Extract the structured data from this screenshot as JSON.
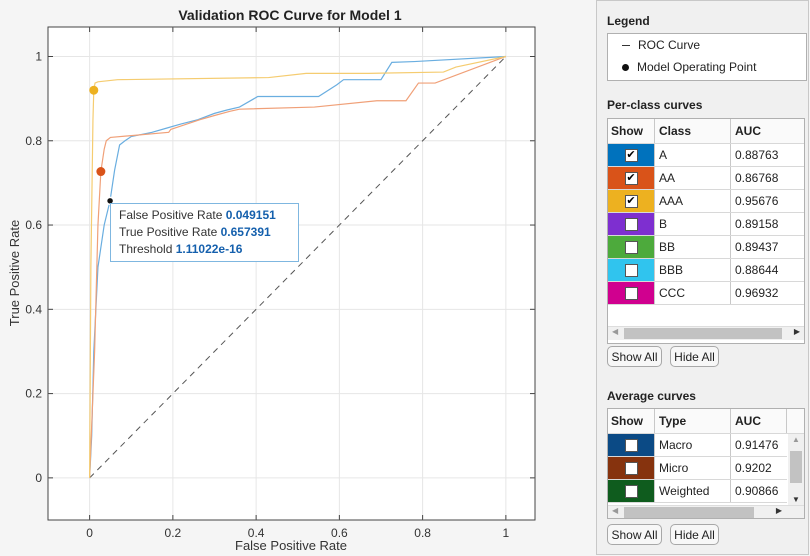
{
  "chart_data": {
    "type": "line",
    "title": "Validation ROC Curve for Model 1",
    "xlabel": "False Positive Rate",
    "ylabel": "True Positive Rate",
    "xlim": [
      -0.1,
      1.07
    ],
    "ylim": [
      -0.1,
      1.07
    ],
    "xticks": [
      "0",
      "0.2",
      "0.4",
      "0.6",
      "0.8",
      "1"
    ],
    "yticks": [
      "0",
      "0.2",
      "0.4",
      "0.6",
      "0.8",
      "1"
    ],
    "grid": true,
    "series": [
      {
        "name": "A",
        "color": "#0072BD",
        "line_color": "#6aaee0",
        "x": [
          0,
          0.005,
          0.01,
          0.02,
          0.035,
          0.049,
          0.06,
          0.072,
          0.085,
          0.1,
          0.15,
          0.185,
          0.22,
          0.26,
          0.3,
          0.33,
          0.36,
          0.404,
          0.55,
          0.594,
          0.61,
          0.7,
          0.726,
          0.78,
          1
        ],
        "y": [
          0,
          0.1,
          0.3,
          0.5,
          0.6,
          0.657,
          0.73,
          0.79,
          0.8,
          0.81,
          0.82,
          0.83,
          0.84,
          0.85,
          0.865,
          0.873,
          0.88,
          0.905,
          0.905,
          0.933,
          0.945,
          0.945,
          0.986,
          0.988,
          1
        ],
        "operating_point": [
          0.049151,
          0.657391
        ]
      },
      {
        "name": "AA",
        "color": "#D95319",
        "line_color": "#f0a078",
        "x": [
          0,
          0.012,
          0.02,
          0.027,
          0.035,
          0.04,
          0.05,
          0.19,
          0.195,
          0.265,
          0.3,
          0.337,
          0.36,
          0.54,
          0.69,
          0.76,
          0.79,
          0.83,
          1
        ],
        "y": [
          0,
          0.3,
          0.6,
          0.727,
          0.78,
          0.8,
          0.808,
          0.82,
          0.827,
          0.85,
          0.86,
          0.87,
          0.875,
          0.88,
          0.895,
          0.895,
          0.937,
          0.937,
          1
        ],
        "operating_point": [
          0.027,
          0.727
        ]
      },
      {
        "name": "AAA",
        "color": "#EDB120",
        "line_color": "#f5cc70",
        "x": [
          0,
          0.003,
          0.008,
          0.01,
          0.013,
          0.02,
          0.067,
          0.43,
          0.52,
          0.67,
          0.85,
          0.88,
          1
        ],
        "y": [
          0,
          0.5,
          0.85,
          0.92,
          0.937,
          0.94,
          0.945,
          0.95,
          0.96,
          0.96,
          0.963,
          0.975,
          1
        ],
        "operating_point": [
          0.01,
          0.92
        ]
      }
    ],
    "reference_line": {
      "x": [
        0,
        1
      ],
      "y": [
        0,
        1
      ],
      "style": "dashed"
    },
    "datatip": {
      "fpr_label": "False Positive Rate",
      "fpr_value": "0.049151",
      "tpr_label": "True Positive Rate",
      "tpr_value": "0.657391",
      "thr_label": "Threshold",
      "thr_value": "1.11022e-16"
    }
  },
  "panel": {
    "legend_title": "Legend",
    "legend_items": [
      {
        "label": "ROC Curve",
        "icon": "line-icon"
      },
      {
        "label": "Model Operating Point",
        "icon": "dot-icon"
      }
    ],
    "per_class_title": "Per-class curves",
    "per_class_headers": [
      "Show",
      "Class",
      "AUC"
    ],
    "per_class_rows": [
      {
        "class": "A",
        "auc": "0.88763",
        "checked": true,
        "color": "#0072BD"
      },
      {
        "class": "AA",
        "auc": "0.86768",
        "checked": true,
        "color": "#D95319"
      },
      {
        "class": "AAA",
        "auc": "0.95676",
        "checked": true,
        "color": "#EDB120"
      },
      {
        "class": "B",
        "auc": "0.89158",
        "checked": false,
        "color": "#7E2FD0"
      },
      {
        "class": "BB",
        "auc": "0.89437",
        "checked": false,
        "color": "#4DAA3C"
      },
      {
        "class": "BBB",
        "auc": "0.88644",
        "checked": false,
        "color": "#30C4EE"
      },
      {
        "class": "CCC",
        "auc": "0.96932",
        "checked": false,
        "color": "#D0008F"
      }
    ],
    "show_all": "Show All",
    "hide_all": "Hide All",
    "average_title": "Average curves",
    "average_headers": [
      "Show",
      "Type",
      "AUC"
    ],
    "average_rows": [
      {
        "type": "Macro",
        "auc": "0.91476",
        "checked": false,
        "color": "#0B4A85"
      },
      {
        "type": "Micro",
        "auc": "0.9202",
        "checked": false,
        "color": "#86330E"
      },
      {
        "type": "Weighted",
        "auc": "0.90866",
        "checked": false,
        "color": "#0F5C1E"
      }
    ]
  }
}
